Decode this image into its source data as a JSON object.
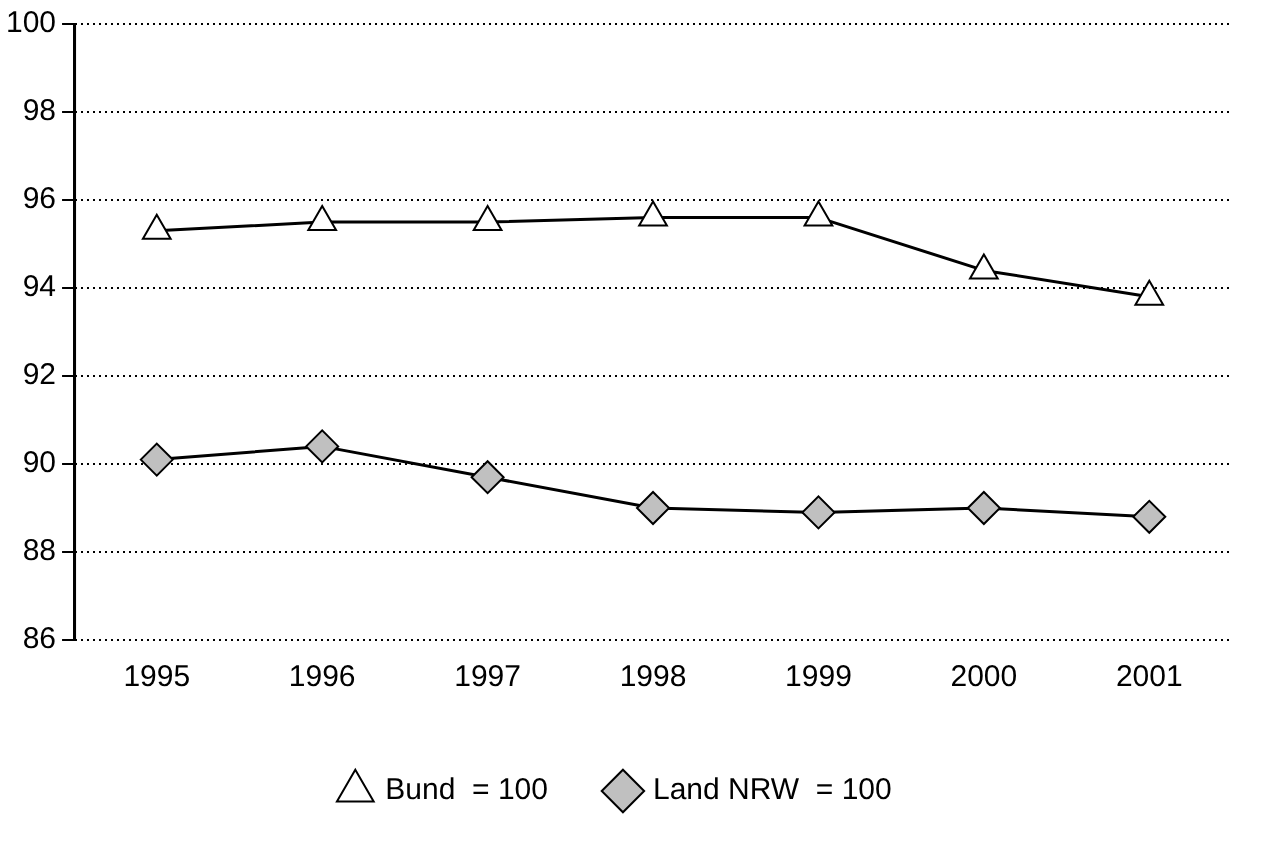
{
  "chart_data": {
    "type": "line",
    "categories": [
      "1995",
      "1996",
      "1997",
      "1998",
      "1999",
      "2000",
      "2001"
    ],
    "series": [
      {
        "name": "Bund  = 100",
        "color": "#000000",
        "marker": "triangle",
        "values": [
          95.3,
          95.5,
          95.5,
          95.6,
          95.6,
          94.4,
          93.8
        ]
      },
      {
        "name": "Land NRW  = 100",
        "color": "#000000",
        "marker": "diamond",
        "values": [
          90.1,
          90.4,
          89.7,
          89.0,
          88.9,
          89.0,
          88.8
        ]
      }
    ],
    "ylim": [
      86,
      100
    ],
    "yticks": [
      86,
      88,
      90,
      92,
      94,
      96,
      98,
      100
    ],
    "grid": "y",
    "legend": "bottom",
    "line_style": "solid"
  }
}
